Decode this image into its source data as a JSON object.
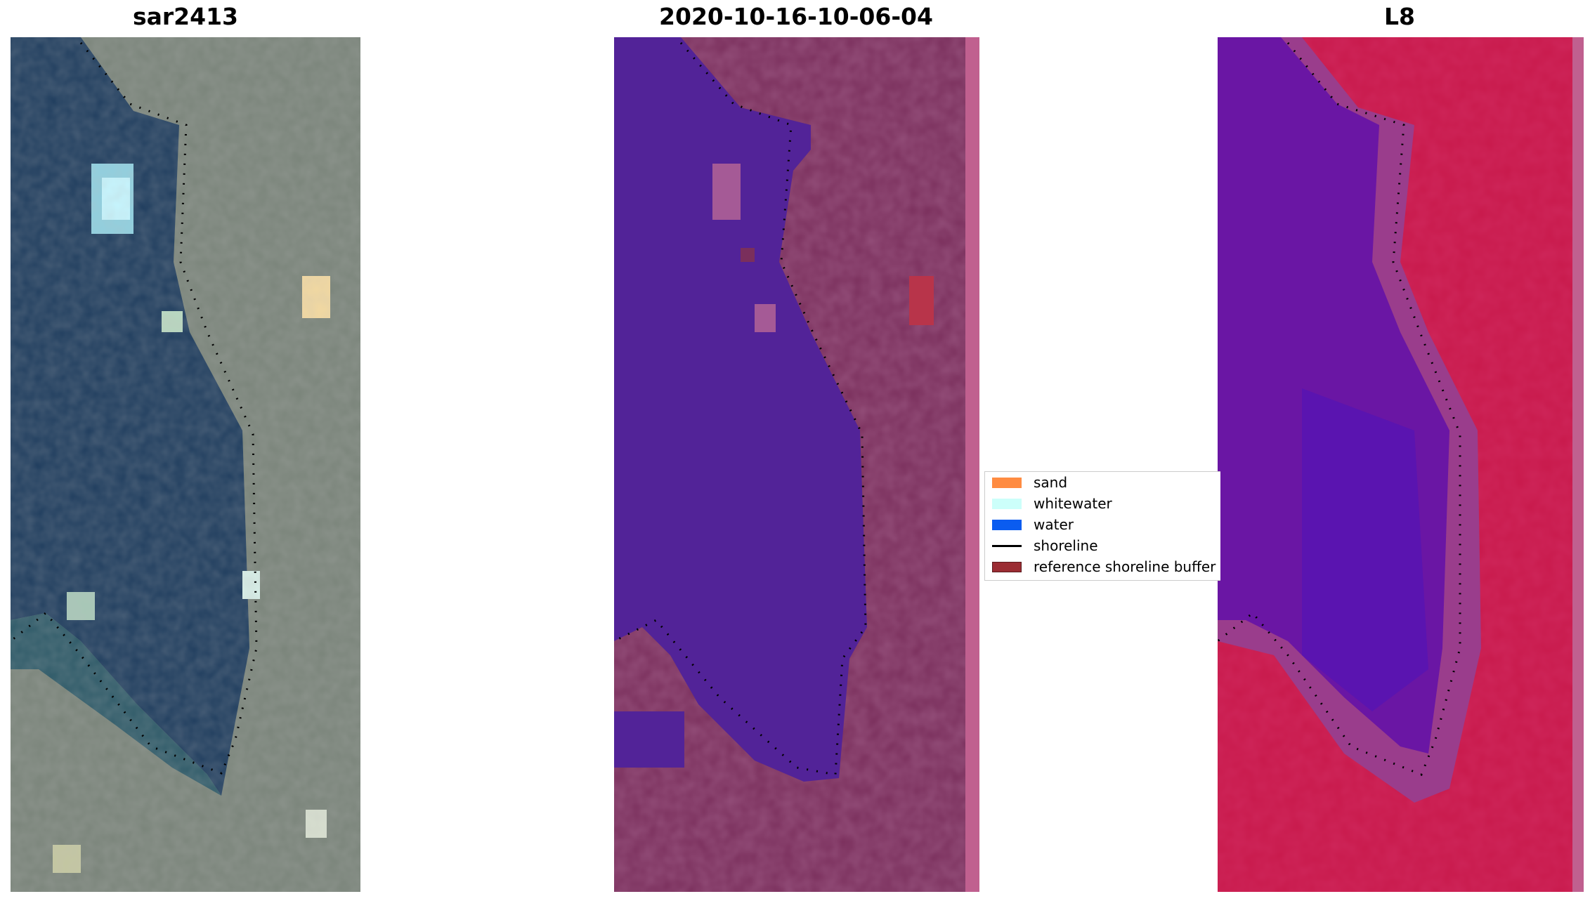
{
  "panels": [
    {
      "title": "sar2413",
      "icon": "satellite-rgb-image"
    },
    {
      "title": "2020-10-16-10-06-04",
      "icon": "classification-overlay-image"
    },
    {
      "title": "L8",
      "icon": "false-color-image"
    }
  ],
  "legend": {
    "items": [
      {
        "label": "sand",
        "color": "#ff8c42",
        "kind": "patch"
      },
      {
        "label": "whitewater",
        "color": "#ccfffa",
        "kind": "patch"
      },
      {
        "label": "water",
        "color": "#0a5cf0",
        "kind": "patch"
      },
      {
        "label": "shoreline",
        "color": "#000000",
        "kind": "line"
      },
      {
        "label": "reference shoreline buffer",
        "color": "#9b2c33",
        "kind": "patch"
      }
    ]
  },
  "colors": {
    "sea_dark": "#1f3d5e",
    "sea_class": "#522398",
    "land_class": "#7a2f5c",
    "l8_water": "#6a16a4",
    "l8_land": "#c8194b"
  }
}
